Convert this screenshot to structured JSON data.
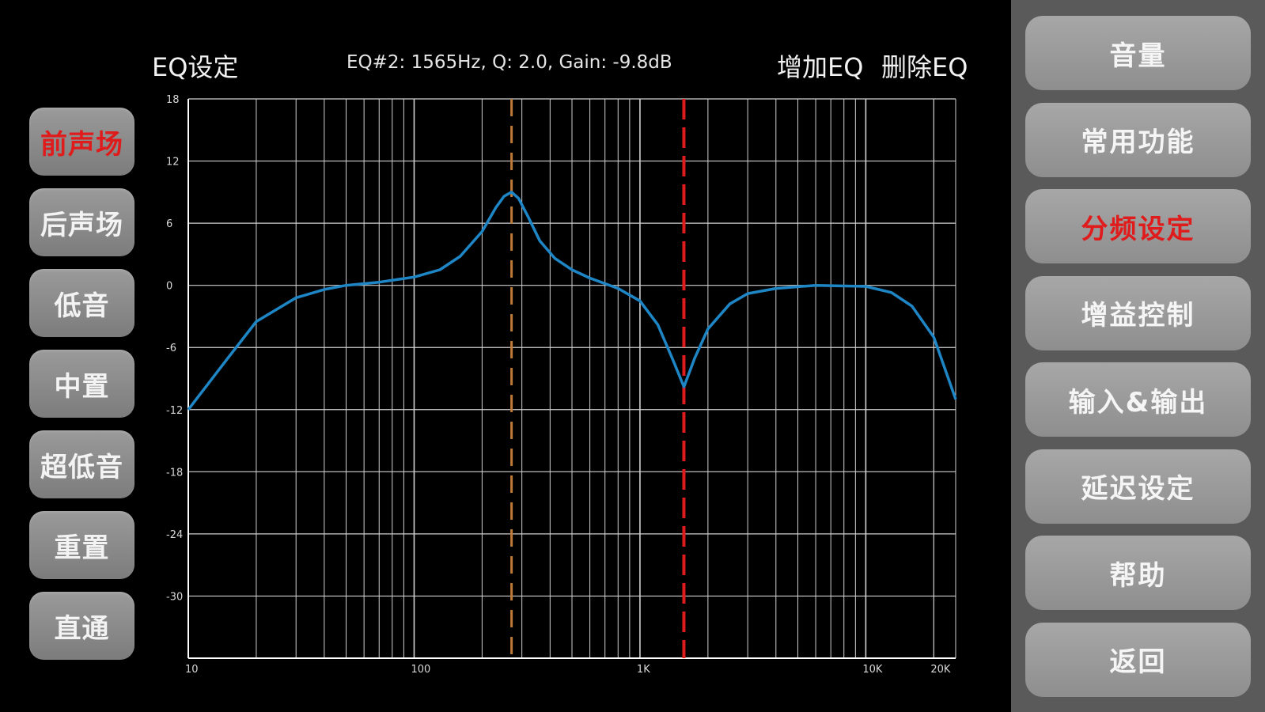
{
  "header": {
    "title": "EQ设定",
    "info": "EQ#2: 1565Hz, Q: 2.0, Gain: -9.8dB",
    "add_label": "增加EQ",
    "delete_label": "删除EQ"
  },
  "channels": [
    {
      "label": "前声场",
      "active": true
    },
    {
      "label": "后声场",
      "active": false
    },
    {
      "label": "低音",
      "active": false
    },
    {
      "label": "中置",
      "active": false
    },
    {
      "label": "超低音",
      "active": false
    },
    {
      "label": "重置",
      "active": false
    },
    {
      "label": "直通",
      "active": false
    }
  ],
  "menu": [
    {
      "label": "音量",
      "active": false
    },
    {
      "label": "常用功能",
      "active": false
    },
    {
      "label": "分频设定",
      "active": true
    },
    {
      "label": "增益控制",
      "active": false
    },
    {
      "label": "输入&输出",
      "active": false
    },
    {
      "label": "延迟设定",
      "active": false
    },
    {
      "label": "帮助",
      "active": false
    },
    {
      "label": "返回",
      "active": false
    }
  ],
  "colors": {
    "curve": "#1f86c6",
    "marker_selected": "#e01b1b",
    "marker_other": "#c07a35",
    "grid": "#d0d0d0",
    "active_text": "#e01b1b"
  },
  "chart_data": {
    "type": "line",
    "x_scale": "log",
    "xlim": [
      10,
      25000
    ],
    "ylim": [
      -36,
      18
    ],
    "x_tick_labels": [
      {
        "value": 10,
        "label": "10"
      },
      {
        "value": 100,
        "label": "100"
      },
      {
        "value": 1000,
        "label": "1K"
      },
      {
        "value": 10000,
        "label": "10K"
      },
      {
        "value": 20000,
        "label": "20K"
      }
    ],
    "y_tick_labels": [
      {
        "value": 18,
        "label": "18"
      },
      {
        "value": 12,
        "label": "12"
      },
      {
        "value": 6,
        "label": "6"
      },
      {
        "value": 0,
        "label": "0"
      },
      {
        "value": -6,
        "label": "-6"
      },
      {
        "value": -12,
        "label": "-12"
      },
      {
        "value": -18,
        "label": "-18"
      },
      {
        "value": -24,
        "label": "-24"
      },
      {
        "value": -30,
        "label": "-30"
      }
    ],
    "grid": true,
    "markers": [
      {
        "freq": 270,
        "selected": false
      },
      {
        "freq": 1565,
        "selected": true
      }
    ],
    "curve": [
      [
        10,
        -12.0
      ],
      [
        15,
        -7.0
      ],
      [
        20,
        -3.5
      ],
      [
        30,
        -1.2
      ],
      [
        40,
        -0.4
      ],
      [
        50,
        0.0
      ],
      [
        70,
        0.3
      ],
      [
        100,
        0.8
      ],
      [
        130,
        1.5
      ],
      [
        160,
        2.8
      ],
      [
        200,
        5.2
      ],
      [
        230,
        7.5
      ],
      [
        250,
        8.6
      ],
      [
        270,
        9.0
      ],
      [
        290,
        8.4
      ],
      [
        320,
        6.6
      ],
      [
        360,
        4.3
      ],
      [
        420,
        2.6
      ],
      [
        500,
        1.5
      ],
      [
        600,
        0.7
      ],
      [
        800,
        -0.3
      ],
      [
        1000,
        -1.5
      ],
      [
        1200,
        -3.8
      ],
      [
        1400,
        -7.2
      ],
      [
        1565,
        -9.8
      ],
      [
        1750,
        -7.0
      ],
      [
        2000,
        -4.2
      ],
      [
        2500,
        -1.8
      ],
      [
        3000,
        -0.8
      ],
      [
        4000,
        -0.3
      ],
      [
        6000,
        0.0
      ],
      [
        10000,
        -0.1
      ],
      [
        13000,
        -0.7
      ],
      [
        16000,
        -2.0
      ],
      [
        20000,
        -5.0
      ],
      [
        25000,
        -11.0
      ]
    ]
  }
}
